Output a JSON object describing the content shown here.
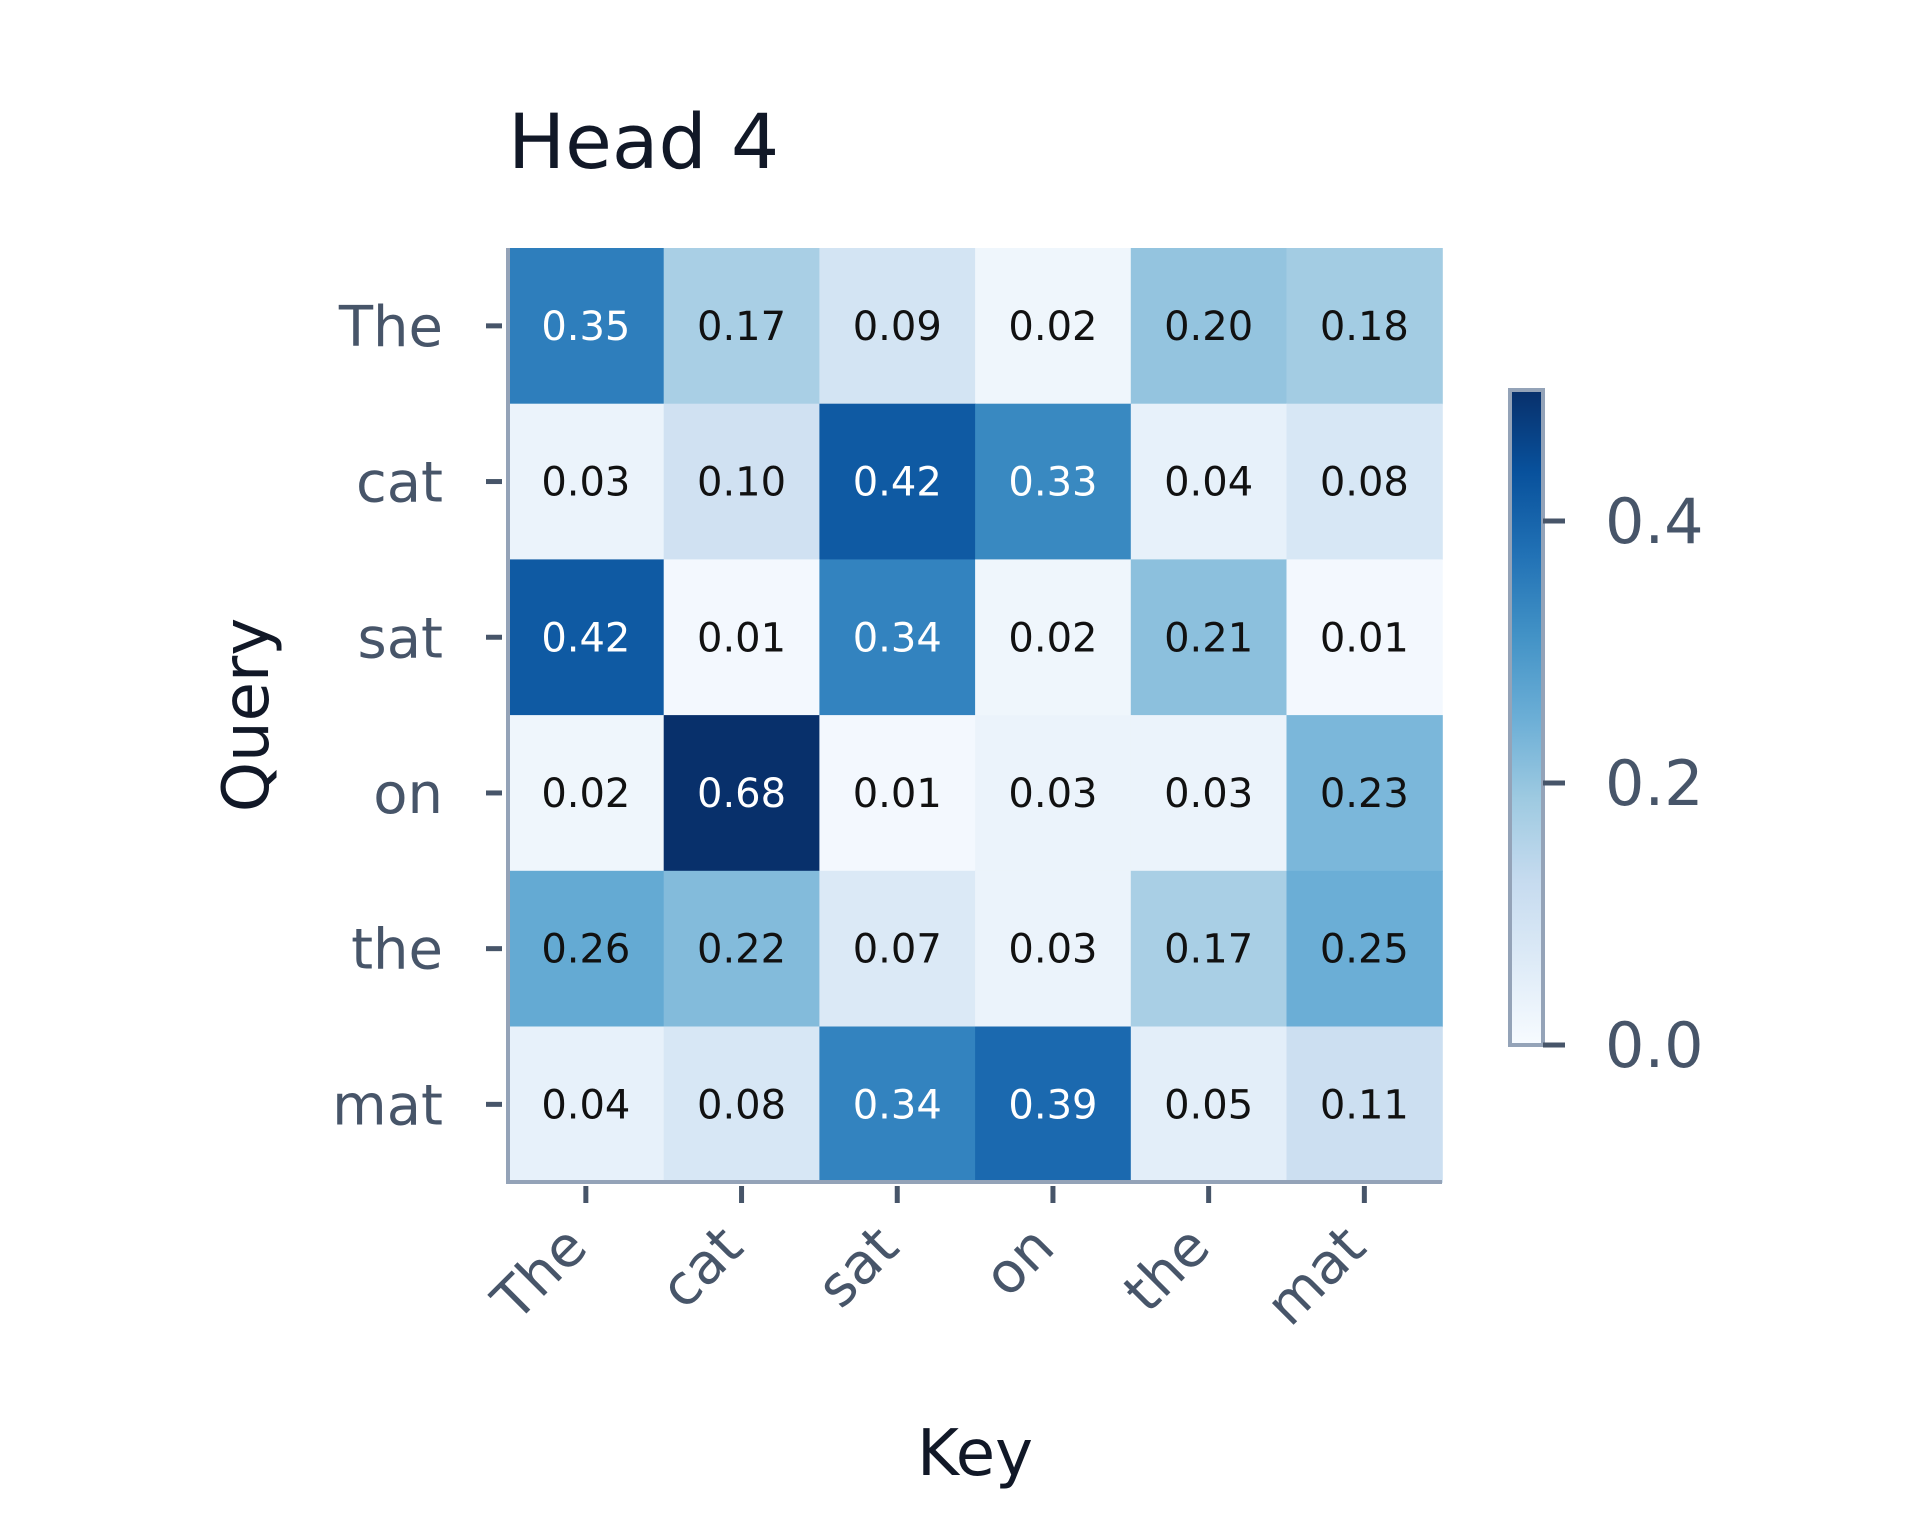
{
  "chart_data": {
    "type": "heatmap",
    "title": "Head 4",
    "xlabel": "Key",
    "ylabel": "Query",
    "x_categories": [
      "The",
      "cat",
      "sat",
      "on",
      "the",
      "mat"
    ],
    "y_categories": [
      "The",
      "cat",
      "sat",
      "on",
      "the",
      "mat"
    ],
    "values": [
      [
        0.35,
        0.17,
        0.09,
        0.02,
        0.2,
        0.18
      ],
      [
        0.03,
        0.1,
        0.42,
        0.33,
        0.04,
        0.08
      ],
      [
        0.42,
        0.01,
        0.34,
        0.02,
        0.21,
        0.01
      ],
      [
        0.02,
        0.68,
        0.01,
        0.03,
        0.03,
        0.23
      ],
      [
        0.26,
        0.22,
        0.07,
        0.03,
        0.17,
        0.25
      ],
      [
        0.04,
        0.08,
        0.34,
        0.39,
        0.05,
        0.11
      ]
    ],
    "value_labels": [
      [
        "0.35",
        "0.17",
        "0.09",
        "0.02",
        "0.20",
        "0.18"
      ],
      [
        "0.03",
        "0.10",
        "0.42",
        "0.33",
        "0.04",
        "0.08"
      ],
      [
        "0.42",
        "0.01",
        "0.34",
        "0.02",
        "0.21",
        "0.01"
      ],
      [
        "0.02",
        "0.68",
        "0.01",
        "0.03",
        "0.03",
        "0.23"
      ],
      [
        "0.26",
        "0.22",
        "0.07",
        "0.03",
        "0.17",
        "0.25"
      ],
      [
        "0.04",
        "0.08",
        "0.34",
        "0.39",
        "0.05",
        "0.11"
      ]
    ],
    "colormap": "Blues",
    "color_range": [
      0,
      0.5
    ],
    "colorbar": {
      "ticks": [
        0.0,
        0.2,
        0.4
      ],
      "tick_labels": [
        "0.0",
        "0.2",
        "0.4"
      ]
    },
    "colors": {
      "low": "#f7fbff",
      "high": "#08306b",
      "text_dark": "#111111",
      "text_light": "#ffffff"
    }
  }
}
